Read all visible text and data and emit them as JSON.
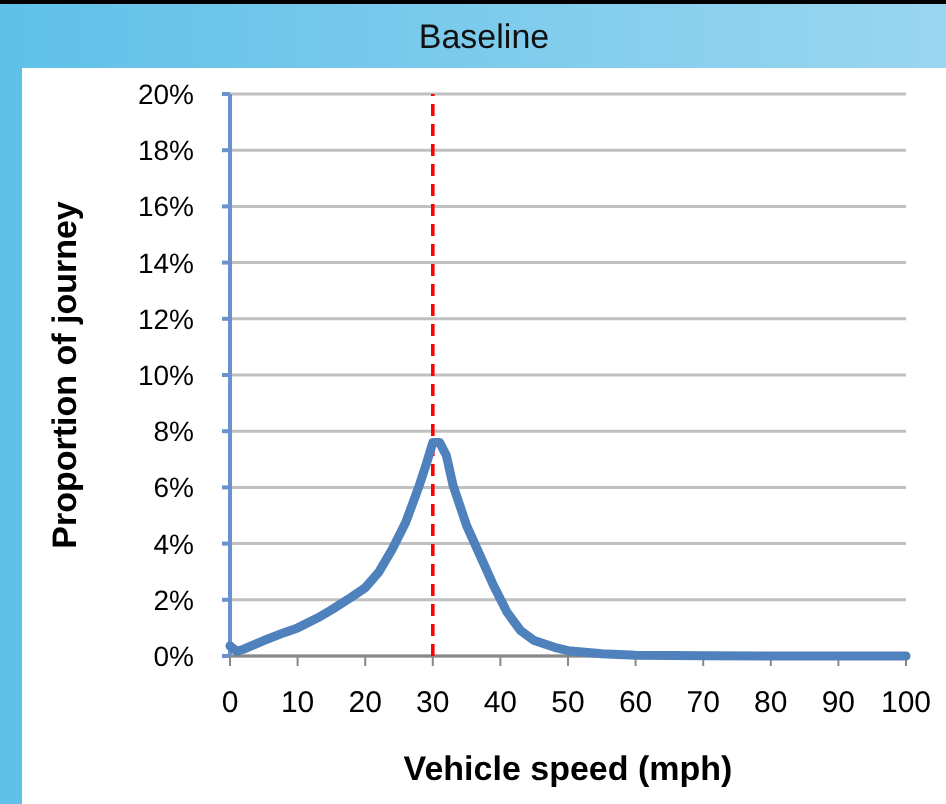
{
  "chart_data": {
    "type": "line",
    "title": "Baseline",
    "xlabel": "Vehicle speed (mph)",
    "ylabel": "Proportion of journey",
    "x": [
      0,
      1,
      2,
      5,
      8,
      10,
      13,
      15,
      18,
      20,
      22,
      24,
      26,
      28,
      29,
      30,
      31,
      32,
      33,
      35,
      37,
      39,
      41,
      43,
      45,
      48,
      50,
      55,
      60,
      70,
      80,
      90,
      100
    ],
    "series": [
      {
        "color": "#4f81bd",
        "values": [
          0.36,
          0.17,
          0.24,
          0.55,
          0.83,
          1.0,
          1.36,
          1.64,
          2.1,
          2.43,
          2.98,
          3.8,
          4.76,
          6.07,
          6.8,
          7.6,
          7.6,
          7.14,
          6.07,
          4.64,
          3.57,
          2.5,
          1.55,
          0.9,
          0.55,
          0.31,
          0.19,
          0.08,
          0.03,
          0.01,
          0,
          0,
          0
        ]
      }
    ],
    "xlim": [
      0,
      100
    ],
    "xticks": [
      0,
      10,
      20,
      30,
      40,
      50,
      60,
      70,
      80,
      90,
      100
    ],
    "ylim": [
      0,
      20
    ],
    "yticks": [
      {
        "value": 0,
        "label": "0%"
      },
      {
        "value": 2,
        "label": "2%"
      },
      {
        "value": 4,
        "label": "4%"
      },
      {
        "value": 6,
        "label": "6%"
      },
      {
        "value": 8,
        "label": "8%"
      },
      {
        "value": 10,
        "label": "10%"
      },
      {
        "value": 12,
        "label": "12%"
      },
      {
        "value": 14,
        "label": "14%"
      },
      {
        "value": 16,
        "label": "16%"
      },
      {
        "value": 18,
        "label": "18%"
      },
      {
        "value": 20,
        "label": "20%"
      }
    ],
    "ref_lines": [
      {
        "axis": "x",
        "value": 30,
        "color": "#ff0000",
        "line_style": "dashed"
      }
    ],
    "grid": "y",
    "marker": "none",
    "line_style": "solid"
  }
}
